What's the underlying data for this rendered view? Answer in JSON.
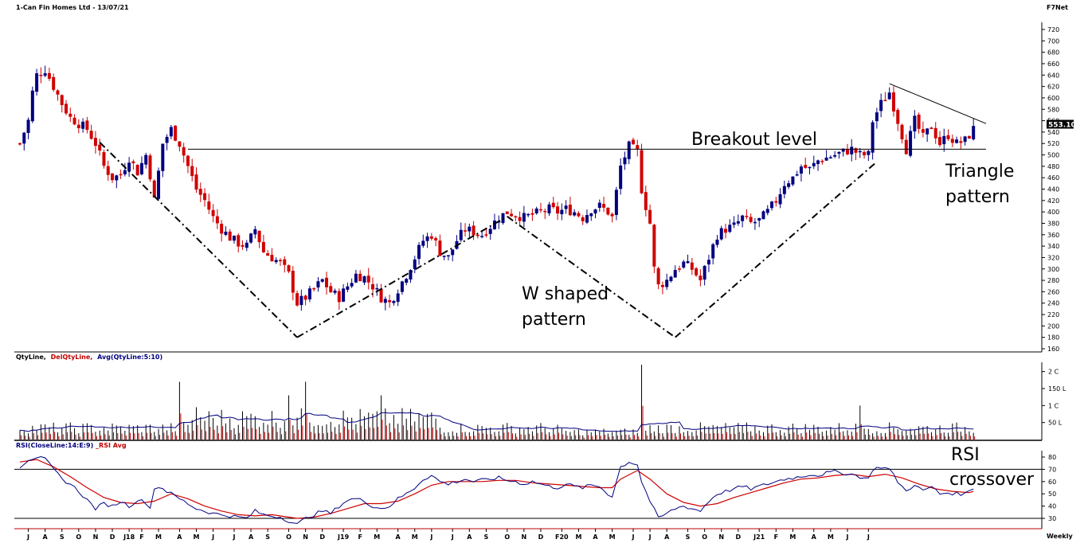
{
  "header": {
    "title": "1-Can Fin Homes Ltd - 13/07/21",
    "brand": "F7Net"
  },
  "price_panel": {
    "current_price_badge": "553.10",
    "annotations": {
      "breakout": "Breakout level",
      "w_line1": "W shaped",
      "w_line2": "pattern",
      "tri_line1": "Triangle",
      "tri_line2": "pattern"
    }
  },
  "volume_panel": {
    "legend": [
      "QtyLine,",
      "DelQtyLine,",
      "Avg(QtyLine:5:10)"
    ],
    "legend_colors": [
      "#000000",
      "#c00000",
      "#000080"
    ]
  },
  "rsi_panel": {
    "legend": [
      "RSI(CloseLine:14:E:9)",
      "_RSI Avg"
    ],
    "legend_colors": [
      "#000080",
      "#c00000"
    ],
    "annotation_line1": "RSI",
    "annotation_line2": "crossover"
  },
  "footer": {
    "period": "Weekly"
  },
  "colors": {
    "up": "#000080",
    "down": "#d00000",
    "rsi": "#000080",
    "rsi_avg": "#d00000"
  },
  "chart_data": [
    {
      "type": "candlestick",
      "ylim": [
        150,
        730
      ],
      "yticks": [
        160,
        180,
        200,
        220,
        240,
        260,
        280,
        300,
        320,
        340,
        360,
        380,
        400,
        420,
        440,
        460,
        480,
        500,
        520,
        540,
        560,
        580,
        600,
        620,
        640,
        660,
        680,
        700,
        720
      ],
      "x_labels": [
        "J",
        "A",
        "S",
        "O",
        "N",
        "D",
        "J18",
        "F",
        "M",
        "A",
        "M",
        "J",
        "J",
        "A",
        "S",
        "O",
        "N",
        "D",
        "J19",
        "F",
        "M",
        "A",
        "M",
        "J",
        "J",
        "A",
        "S",
        "O",
        "N",
        "D",
        "F20",
        "M",
        "A",
        "M",
        "J",
        "J",
        "A",
        "S",
        "O",
        "N",
        "D",
        "J21",
        "F",
        "M",
        "A",
        "M",
        "J",
        "J"
      ],
      "x_label_weeks": [
        2,
        6,
        10,
        14,
        18,
        22,
        26,
        29,
        33,
        38,
        42,
        46,
        51,
        55,
        59,
        64,
        68,
        72,
        77,
        81,
        85,
        90,
        94,
        98,
        103,
        107,
        111,
        116,
        120,
        124,
        129,
        133,
        137,
        141,
        146,
        150,
        154,
        159,
        163,
        167,
        171,
        176,
        180,
        184,
        189,
        193,
        197,
        202
      ],
      "close_path": [
        [
          0,
          520
        ],
        [
          2,
          560
        ],
        [
          3,
          610
        ],
        [
          4,
          640
        ],
        [
          6,
          650
        ],
        [
          8,
          620
        ],
        [
          10,
          590
        ],
        [
          12,
          565
        ],
        [
          14,
          555
        ],
        [
          16,
          545
        ],
        [
          18,
          520
        ],
        [
          20,
          480
        ],
        [
          22,
          460
        ],
        [
          24,
          465
        ],
        [
          26,
          495
        ],
        [
          28,
          470
        ],
        [
          30,
          500
        ],
        [
          31,
          465
        ],
        [
          32,
          420
        ],
        [
          34,
          520
        ],
        [
          36,
          545
        ],
        [
          38,
          520
        ],
        [
          40,
          480
        ],
        [
          42,
          440
        ],
        [
          44,
          420
        ],
        [
          46,
          390
        ],
        [
          48,
          370
        ],
        [
          50,
          355
        ],
        [
          52,
          345
        ],
        [
          54,
          340
        ],
        [
          56,
          370
        ],
        [
          58,
          330
        ],
        [
          60,
          320
        ],
        [
          62,
          310
        ],
        [
          64,
          290
        ],
        [
          66,
          240
        ],
        [
          68,
          250
        ],
        [
          70,
          265
        ],
        [
          72,
          280
        ],
        [
          74,
          260
        ],
        [
          76,
          250
        ],
        [
          78,
          270
        ],
        [
          80,
          290
        ],
        [
          82,
          285
        ],
        [
          84,
          270
        ],
        [
          86,
          250
        ],
        [
          88,
          240
        ],
        [
          90,
          265
        ],
        [
          92,
          290
        ],
        [
          94,
          320
        ],
        [
          96,
          350
        ],
        [
          98,
          360
        ],
        [
          100,
          330
        ],
        [
          102,
          320
        ],
        [
          104,
          350
        ],
        [
          106,
          370
        ],
        [
          108,
          365
        ],
        [
          110,
          360
        ],
        [
          112,
          375
        ],
        [
          114,
          390
        ],
        [
          116,
          400
        ],
        [
          118,
          395
        ],
        [
          120,
          390
        ],
        [
          122,
          395
        ],
        [
          124,
          400
        ],
        [
          126,
          405
        ],
        [
          128,
          400
        ],
        [
          130,
          405
        ],
        [
          132,
          400
        ],
        [
          134,
          390
        ],
        [
          136,
          405
        ],
        [
          138,
          410
        ],
        [
          140,
          400
        ],
        [
          141,
          390
        ],
        [
          143,
          480
        ],
        [
          145,
          515
        ],
        [
          147,
          505
        ],
        [
          148,
          440
        ],
        [
          150,
          380
        ],
        [
          151,
          300
        ],
        [
          152,
          270
        ],
        [
          154,
          280
        ],
        [
          156,
          300
        ],
        [
          158,
          310
        ],
        [
          160,
          300
        ],
        [
          162,
          280
        ],
        [
          164,
          320
        ],
        [
          166,
          360
        ],
        [
          168,
          370
        ],
        [
          170,
          375
        ],
        [
          172,
          390
        ],
        [
          174,
          380
        ],
        [
          176,
          385
        ],
        [
          178,
          400
        ],
        [
          180,
          420
        ],
        [
          182,
          450
        ],
        [
          184,
          460
        ],
        [
          186,
          480
        ],
        [
          188,
          475
        ],
        [
          190,
          490
        ],
        [
          192,
          495
        ],
        [
          194,
          500
        ],
        [
          196,
          505
        ],
        [
          198,
          510
        ],
        [
          200,
          500
        ],
        [
          202,
          500
        ],
        [
          203,
          560
        ],
        [
          205,
          590
        ],
        [
          207,
          610
        ],
        [
          209,
          560
        ],
        [
          211,
          510
        ],
        [
          213,
          560
        ],
        [
          215,
          530
        ],
        [
          217,
          550
        ],
        [
          219,
          520
        ],
        [
          221,
          535
        ],
        [
          223,
          520
        ],
        [
          225,
          525
        ],
        [
          227,
          545
        ]
      ],
      "breakout_level": 510,
      "trendlines": {
        "w_left": [
          [
            19,
            522
          ],
          [
            66,
            180
          ]
        ],
        "w_mid_up": [
          [
            66,
            180
          ],
          [
            116,
            392
          ]
        ],
        "w_mid_down": [
          [
            116,
            392
          ],
          [
            156,
            180
          ]
        ],
        "w_right": [
          [
            156,
            180
          ],
          [
            204,
            488
          ]
        ],
        "triangle_top": [
          [
            207,
            625
          ],
          [
            230,
            555
          ]
        ]
      }
    },
    {
      "type": "bar",
      "series": [
        {
          "name": "QtyLine"
        },
        {
          "name": "DelQtyLine"
        },
        {
          "name": "Avg(QtyLine:5:10)"
        }
      ],
      "yticks_labels": [
        "2 C",
        "150 L",
        "1 C",
        "50 L"
      ],
      "yticks_values": [
        200,
        150,
        100,
        50
      ],
      "ylim": [
        0,
        225
      ],
      "spikes": [
        [
          38,
          170
        ],
        [
          42,
          95
        ],
        [
          64,
          130
        ],
        [
          68,
          170
        ],
        [
          86,
          130
        ],
        [
          148,
          220
        ],
        [
          200,
          100
        ],
        [
          228,
          70
        ]
      ]
    },
    {
      "type": "line",
      "series": [
        {
          "name": "RSI"
        },
        {
          "name": "RSI Avg"
        }
      ],
      "ylim": [
        25,
        82
      ],
      "yticks": [
        30,
        40,
        50,
        60,
        70,
        80
      ],
      "bands": [
        70,
        30
      ],
      "rsi_path": [
        [
          0,
          72
        ],
        [
          2,
          78
        ],
        [
          4,
          80
        ],
        [
          6,
          78
        ],
        [
          8,
          70
        ],
        [
          10,
          62
        ],
        [
          12,
          58
        ],
        [
          14,
          52
        ],
        [
          16,
          45
        ],
        [
          18,
          38
        ],
        [
          20,
          42
        ],
        [
          22,
          40
        ],
        [
          24,
          44
        ],
        [
          26,
          40
        ],
        [
          28,
          45
        ],
        [
          30,
          43
        ],
        [
          31,
          38
        ],
        [
          32,
          55
        ],
        [
          34,
          55
        ],
        [
          35,
          52
        ],
        [
          37,
          48
        ],
        [
          40,
          42
        ],
        [
          42,
          38
        ],
        [
          44,
          36
        ],
        [
          46,
          34
        ],
        [
          48,
          33
        ],
        [
          50,
          32
        ],
        [
          52,
          31
        ],
        [
          54,
          30
        ],
        [
          56,
          36
        ],
        [
          58,
          33
        ],
        [
          60,
          32
        ],
        [
          62,
          31
        ],
        [
          64,
          28
        ],
        [
          66,
          25
        ],
        [
          68,
          30
        ],
        [
          70,
          33
        ],
        [
          72,
          36
        ],
        [
          74,
          34
        ],
        [
          76,
          40
        ],
        [
          78,
          45
        ],
        [
          80,
          46
        ],
        [
          82,
          44
        ],
        [
          84,
          40
        ],
        [
          86,
          38
        ],
        [
          88,
          40
        ],
        [
          90,
          46
        ],
        [
          92,
          50
        ],
        [
          94,
          55
        ],
        [
          96,
          62
        ],
        [
          98,
          65
        ],
        [
          100,
          60
        ],
        [
          102,
          58
        ],
        [
          104,
          60
        ],
        [
          106,
          62
        ],
        [
          108,
          60
        ],
        [
          110,
          61
        ],
        [
          112,
          62
        ],
        [
          114,
          63
        ],
        [
          116,
          61
        ],
        [
          118,
          60
        ],
        [
          120,
          58
        ],
        [
          122,
          60
        ],
        [
          124,
          58
        ],
        [
          126,
          56
        ],
        [
          128,
          55
        ],
        [
          130,
          58
        ],
        [
          132,
          56
        ],
        [
          134,
          55
        ],
        [
          136,
          57
        ],
        [
          138,
          56
        ],
        [
          140,
          50
        ],
        [
          141,
          48
        ],
        [
          143,
          72
        ],
        [
          145,
          76
        ],
        [
          147,
          74
        ],
        [
          148,
          60
        ],
        [
          150,
          44
        ],
        [
          152,
          30
        ],
        [
          154,
          34
        ],
        [
          156,
          38
        ],
        [
          158,
          40
        ],
        [
          160,
          38
        ],
        [
          162,
          36
        ],
        [
          164,
          44
        ],
        [
          166,
          50
        ],
        [
          168,
          52
        ],
        [
          170,
          54
        ],
        [
          172,
          56
        ],
        [
          174,
          54
        ],
        [
          176,
          56
        ],
        [
          178,
          58
        ],
        [
          180,
          60
        ],
        [
          182,
          62
        ],
        [
          184,
          63
        ],
        [
          186,
          64
        ],
        [
          188,
          66
        ],
        [
          190,
          65
        ],
        [
          192,
          67
        ],
        [
          194,
          68
        ],
        [
          196,
          67
        ],
        [
          198,
          66
        ],
        [
          200,
          64
        ],
        [
          202,
          62
        ],
        [
          203,
          70
        ],
        [
          205,
          72
        ],
        [
          207,
          70
        ],
        [
          209,
          60
        ],
        [
          211,
          52
        ],
        [
          213,
          58
        ],
        [
          215,
          52
        ],
        [
          217,
          56
        ],
        [
          219,
          50
        ],
        [
          221,
          51
        ],
        [
          223,
          50
        ],
        [
          225,
          50
        ],
        [
          227,
          55
        ]
      ],
      "avg_path": [
        [
          0,
          76
        ],
        [
          4,
          78
        ],
        [
          8,
          72
        ],
        [
          12,
          64
        ],
        [
          16,
          55
        ],
        [
          20,
          47
        ],
        [
          24,
          43
        ],
        [
          28,
          42
        ],
        [
          32,
          44
        ],
        [
          36,
          50
        ],
        [
          40,
          46
        ],
        [
          44,
          40
        ],
        [
          48,
          36
        ],
        [
          52,
          33
        ],
        [
          56,
          32
        ],
        [
          60,
          33
        ],
        [
          64,
          31
        ],
        [
          66,
          30
        ],
        [
          70,
          31
        ],
        [
          74,
          34
        ],
        [
          78,
          38
        ],
        [
          82,
          42
        ],
        [
          86,
          42
        ],
        [
          90,
          44
        ],
        [
          94,
          50
        ],
        [
          98,
          57
        ],
        [
          102,
          60
        ],
        [
          106,
          60
        ],
        [
          110,
          60
        ],
        [
          114,
          61
        ],
        [
          118,
          61
        ],
        [
          122,
          59
        ],
        [
          126,
          58
        ],
        [
          130,
          57
        ],
        [
          134,
          56
        ],
        [
          138,
          55
        ],
        [
          141,
          55
        ],
        [
          143,
          62
        ],
        [
          147,
          69
        ],
        [
          150,
          62
        ],
        [
          154,
          50
        ],
        [
          158,
          43
        ],
        [
          162,
          40
        ],
        [
          166,
          42
        ],
        [
          170,
          47
        ],
        [
          174,
          51
        ],
        [
          178,
          55
        ],
        [
          182,
          59
        ],
        [
          186,
          62
        ],
        [
          190,
          63
        ],
        [
          194,
          65
        ],
        [
          198,
          66
        ],
        [
          202,
          64
        ],
        [
          206,
          66
        ],
        [
          210,
          63
        ],
        [
          214,
          58
        ],
        [
          218,
          54
        ],
        [
          222,
          52
        ],
        [
          226,
          51
        ],
        [
          227,
          52
        ]
      ]
    }
  ]
}
